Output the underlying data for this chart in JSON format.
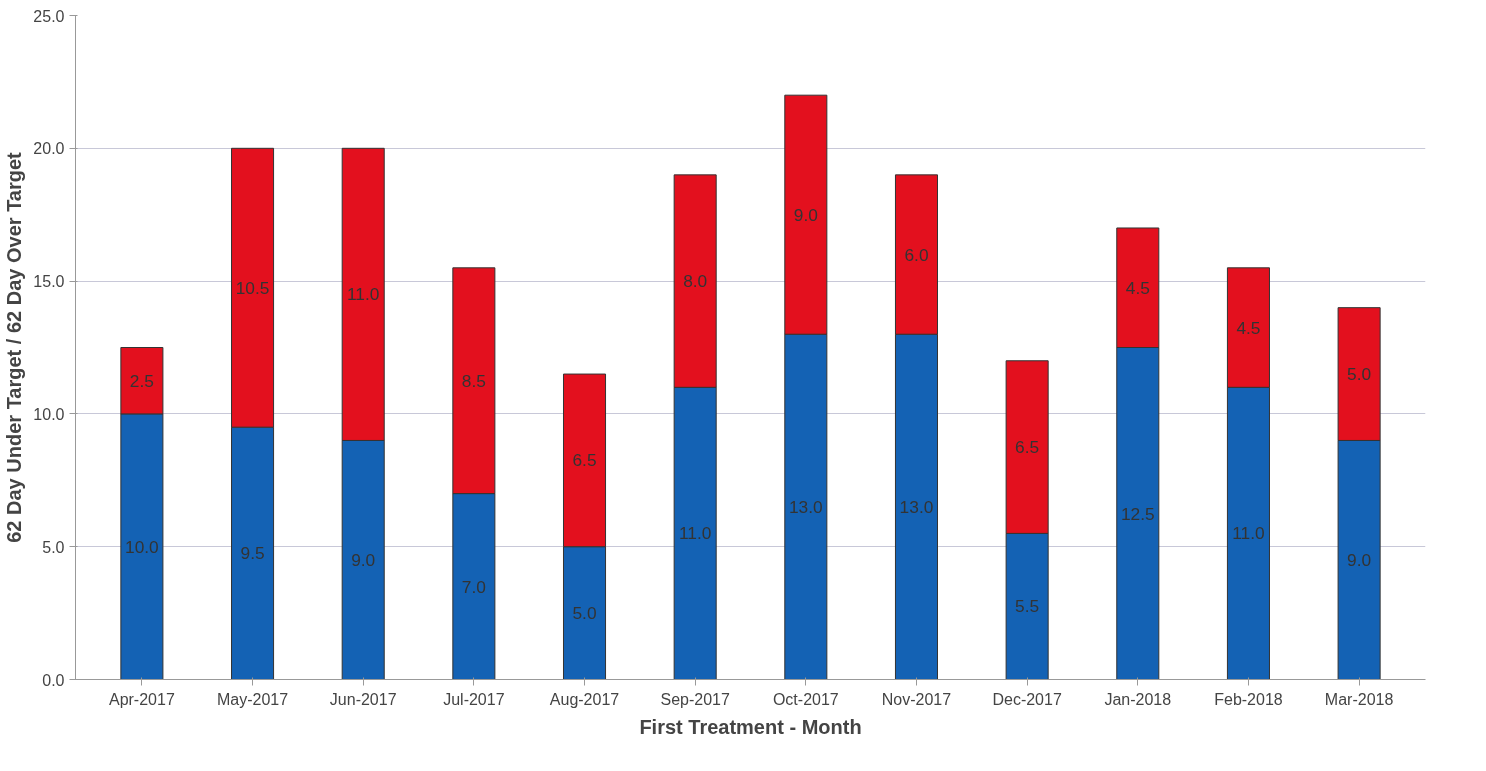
{
  "chart_data": {
    "type": "bar",
    "stacked": true,
    "xlabel": "First Treatment - Month",
    "ylabel": "62 Day Under Target / 62 Day Over Target",
    "categories": [
      "Apr-2017",
      "May-2017",
      "Jun-2017",
      "Jul-2017",
      "Aug-2017",
      "Sep-2017",
      "Oct-2017",
      "Nov-2017",
      "Dec-2017",
      "Jan-2018",
      "Feb-2018",
      "Mar-2018"
    ],
    "series": [
      {
        "color": "#1462b4",
        "values": [
          10,
          9.5,
          9,
          7,
          5,
          11,
          13,
          13,
          5.5,
          12.5,
          11,
          9
        ],
        "value_labels": [
          "10.0",
          "9.5",
          "9.0",
          "7.0",
          "5.0",
          "11.0",
          "13.0",
          "13.0",
          "5.5",
          "12.5",
          "11.0",
          "9.0"
        ]
      },
      {
        "color": "#e3101e",
        "values": [
          2.5,
          10.5,
          11,
          8.5,
          6.5,
          8,
          9,
          6,
          6.5,
          4.5,
          4.5,
          5
        ],
        "value_labels": [
          "2.5",
          "10.5",
          "11.0",
          "8.5",
          "6.5",
          "8.0",
          "9.0",
          "6.0",
          "6.5",
          "4.5",
          "4.5",
          "5.0"
        ]
      }
    ],
    "ylim": [
      0,
      25
    ],
    "yticks": [
      {
        "value": 0,
        "label": "0.0"
      },
      {
        "value": 5,
        "label": "5.0"
      },
      {
        "value": 10,
        "label": "10.0"
      },
      {
        "value": 15,
        "label": "15.0"
      },
      {
        "value": 20,
        "label": "20.0"
      },
      {
        "value": 25,
        "label": "25.0"
      }
    ],
    "grid": "y"
  }
}
